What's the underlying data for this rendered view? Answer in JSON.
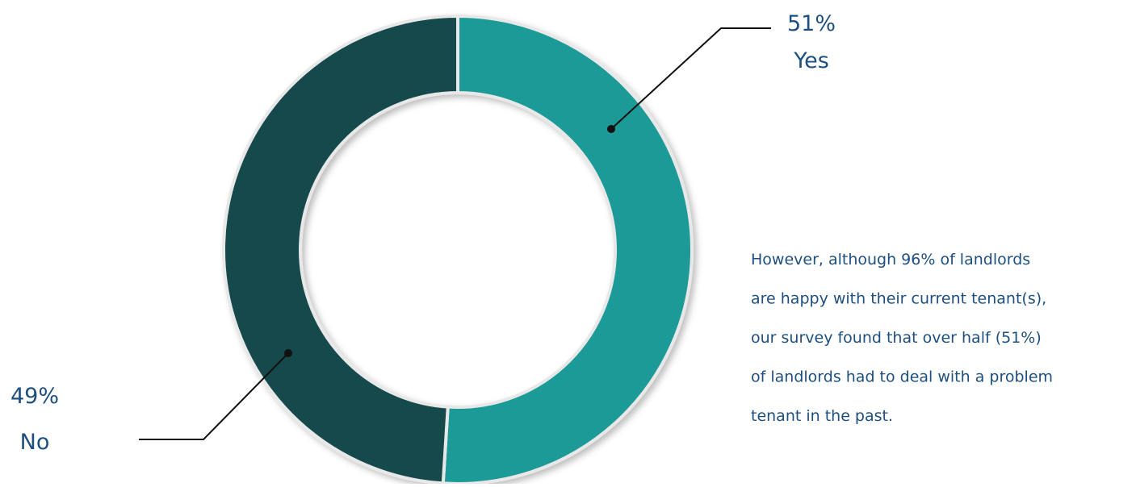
{
  "chart_data": {
    "type": "pie",
    "categories": [
      "Yes",
      "No"
    ],
    "values": [
      51,
      49
    ],
    "value_labels": [
      "51%",
      "49%"
    ],
    "colors": [
      "#1e9a98",
      "#124a4b"
    ],
    "annotation": [
      "However, although 96% of landlords",
      "are happy with their current tenant(s),",
      "our survey found that over half (51%)",
      "of landlords had to deal with a problem",
      "tenant in the past."
    ]
  }
}
